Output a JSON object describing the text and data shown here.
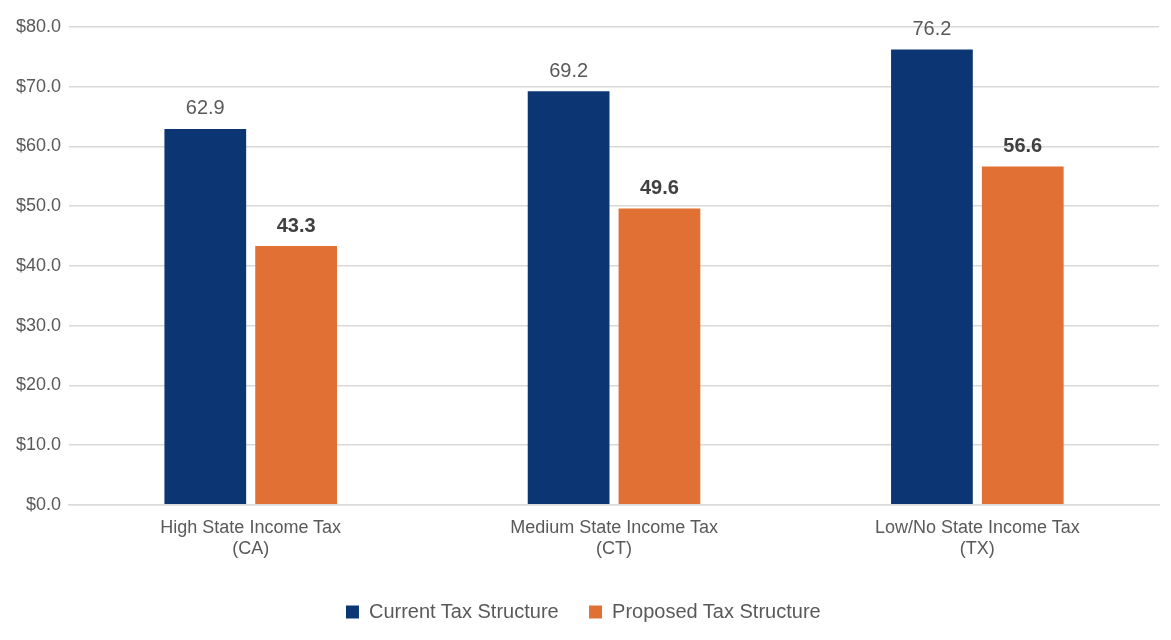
{
  "chart_data": {
    "type": "bar",
    "categories": [
      "High State Income Tax\n(CA)",
      "Medium State Income Tax\n(CT)",
      "Low/No State Income Tax\n(TX)"
    ],
    "series": [
      {
        "name": "Current Tax Structure",
        "color": "#0b3673",
        "values": [
          62.9,
          69.2,
          76.2
        ]
      },
      {
        "name": "Proposed Tax Structure",
        "color": "#e07033",
        "values": [
          43.3,
          49.6,
          56.6
        ]
      }
    ],
    "ylim": [
      0,
      80
    ],
    "yticks": [
      {
        "value": 0,
        "label": "$0.0"
      },
      {
        "value": 10,
        "label": "$10.0"
      },
      {
        "value": 20,
        "label": "$20.0"
      },
      {
        "value": 30,
        "label": "$30.0"
      },
      {
        "value": 40,
        "label": "$40.0"
      },
      {
        "value": 50,
        "label": "$50.0"
      },
      {
        "value": 60,
        "label": "$60.0"
      },
      {
        "value": 70,
        "label": "$70.0"
      },
      {
        "value": 80,
        "label": "$80.0"
      }
    ],
    "grid": "y",
    "legend": "bottom",
    "data_labels": true
  }
}
